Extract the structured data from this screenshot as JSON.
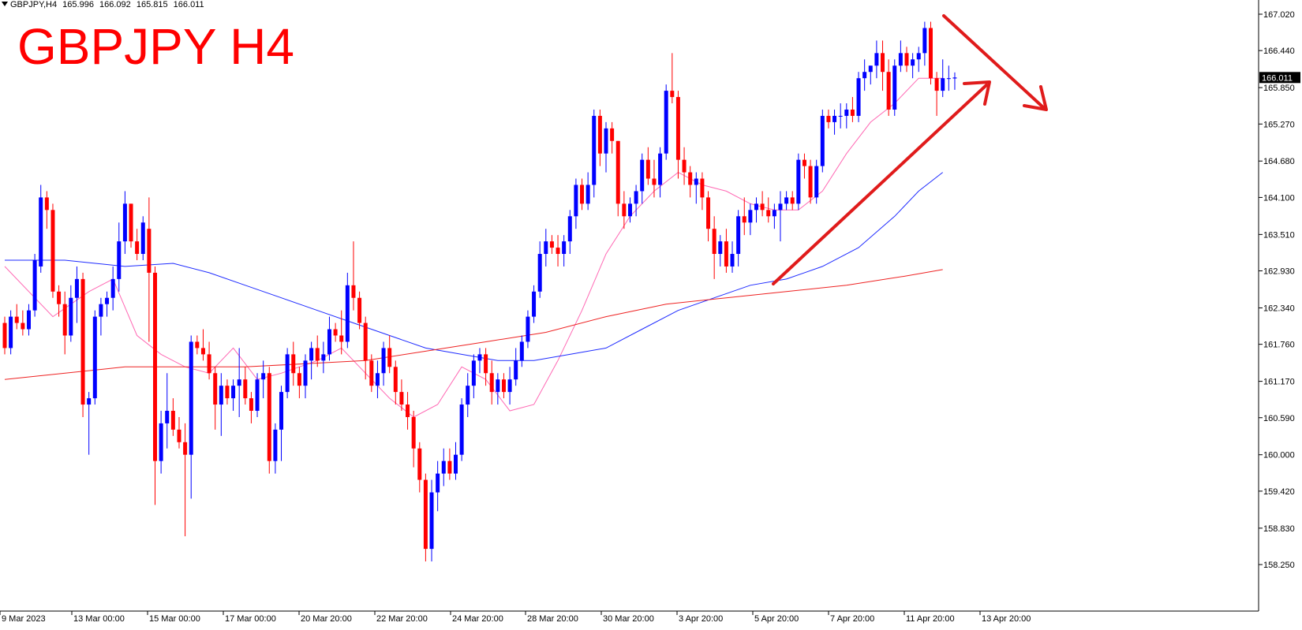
{
  "header": {
    "symbol_tf": "GBPJPY,H4",
    "open": "165.996",
    "high": "166.092",
    "low": "165.815",
    "close": "166.011"
  },
  "title": "GBPJPY H4",
  "current_price": "166.011",
  "colors": {
    "bull": "#0000ff",
    "bear": "#ff0000",
    "ma_fast": "#ff69b4",
    "ma_mid": "#1e2bff",
    "ma_slow": "#ee2222",
    "arrow": "#e01b1b",
    "price_tag_bg": "#000000",
    "price_tag_text": "#ffffff"
  },
  "icons": [
    "dropdown-triangle-icon",
    "up-trend-arrow-icon",
    "down-trend-arrow-icon"
  ],
  "chart_data": {
    "type": "candlestick",
    "title": "GBPJPY H4",
    "ylim": [
      158.0,
      167.2
    ],
    "y_ticks": [
      "167.020",
      "166.440",
      "165.850",
      "165.270",
      "164.680",
      "164.100",
      "163.510",
      "162.930",
      "162.340",
      "161.760",
      "161.170",
      "160.590",
      "160.000",
      "159.420",
      "158.830",
      "158.250"
    ],
    "x_ticks": [
      "9 Mar 2023",
      "13 Mar 00:00",
      "15 Mar 00:00",
      "17 Mar 00:00",
      "20 Mar 20:00",
      "22 Mar 20:00",
      "24 Mar 20:00",
      "28 Mar 20:00",
      "30 Mar 20:00",
      "3 Apr 20:00",
      "5 Apr 20:00",
      "7 Apr 20:00",
      "11 Apr 20:00",
      "13 Apr 20:00"
    ],
    "candles": [
      [
        162.1,
        162.2,
        161.6,
        161.7
      ],
      [
        161.7,
        162.3,
        161.6,
        162.2
      ],
      [
        162.2,
        162.4,
        162.0,
        162.1
      ],
      [
        162.1,
        162.3,
        161.9,
        162.0
      ],
      [
        162.0,
        162.4,
        161.9,
        162.3
      ],
      [
        162.3,
        163.2,
        162.2,
        163.1
      ],
      [
        163.0,
        164.3,
        162.9,
        164.1
      ],
      [
        164.1,
        164.2,
        163.6,
        163.9
      ],
      [
        163.9,
        164.0,
        162.5,
        162.6
      ],
      [
        162.6,
        162.7,
        162.2,
        162.4
      ],
      [
        162.4,
        162.6,
        161.6,
        161.9
      ],
      [
        161.9,
        162.7,
        161.8,
        162.5
      ],
      [
        162.5,
        163.0,
        162.1,
        162.8
      ],
      [
        162.8,
        162.9,
        160.6,
        160.8
      ],
      [
        160.8,
        161.0,
        160.0,
        160.9
      ],
      [
        160.9,
        162.3,
        160.8,
        162.2
      ],
      [
        162.2,
        162.5,
        161.9,
        162.4
      ],
      [
        162.4,
        162.6,
        162.2,
        162.5
      ],
      [
        162.5,
        163.0,
        162.3,
        162.8
      ],
      [
        162.8,
        163.7,
        162.6,
        163.4
      ],
      [
        163.4,
        164.2,
        163.2,
        164.0
      ],
      [
        164.0,
        164.0,
        163.3,
        163.4
      ],
      [
        163.4,
        163.6,
        163.1,
        163.2
      ],
      [
        163.2,
        163.8,
        163.1,
        163.7
      ],
      [
        163.6,
        164.1,
        161.8,
        162.9
      ],
      [
        162.9,
        163.0,
        159.2,
        159.9
      ],
      [
        159.9,
        160.7,
        159.7,
        160.5
      ],
      [
        160.5,
        161.3,
        160.1,
        160.7
      ],
      [
        160.7,
        160.9,
        160.3,
        160.4
      ],
      [
        160.4,
        160.6,
        160.1,
        160.2
      ],
      [
        160.2,
        160.5,
        158.7,
        160.0
      ],
      [
        160.0,
        161.9,
        159.3,
        161.8
      ],
      [
        161.8,
        161.9,
        161.6,
        161.7
      ],
      [
        161.7,
        162.0,
        161.5,
        161.6
      ],
      [
        161.6,
        161.8,
        161.2,
        161.3
      ],
      [
        161.3,
        161.4,
        160.4,
        160.8
      ],
      [
        160.8,
        161.3,
        160.3,
        161.1
      ],
      [
        161.1,
        161.2,
        160.8,
        160.9
      ],
      [
        160.9,
        161.2,
        160.7,
        161.1
      ],
      [
        161.1,
        161.7,
        160.6,
        161.2
      ],
      [
        161.2,
        161.4,
        160.8,
        160.9
      ],
      [
        160.9,
        161.0,
        160.5,
        160.7
      ],
      [
        160.7,
        161.3,
        160.6,
        161.2
      ],
      [
        161.2,
        161.5,
        160.9,
        161.3
      ],
      [
        161.3,
        161.4,
        159.7,
        159.9
      ],
      [
        159.9,
        160.5,
        159.7,
        160.4
      ],
      [
        160.4,
        161.1,
        159.9,
        161.0
      ],
      [
        161.0,
        161.7,
        160.9,
        161.6
      ],
      [
        161.6,
        161.8,
        161.1,
        161.3
      ],
      [
        161.3,
        161.4,
        160.9,
        161.1
      ],
      [
        161.1,
        161.6,
        160.9,
        161.5
      ],
      [
        161.5,
        161.8,
        161.2,
        161.7
      ],
      [
        161.7,
        161.9,
        161.4,
        161.5
      ],
      [
        161.5,
        161.8,
        161.3,
        161.6
      ],
      [
        161.6,
        162.2,
        161.5,
        162.0
      ],
      [
        162.0,
        162.1,
        161.8,
        161.9
      ],
      [
        161.9,
        162.3,
        161.6,
        161.8
      ],
      [
        161.8,
        162.9,
        161.7,
        162.7
      ],
      [
        162.7,
        163.4,
        162.3,
        162.5
      ],
      [
        162.5,
        162.6,
        162.0,
        162.1
      ],
      [
        162.1,
        162.2,
        161.2,
        161.5
      ],
      [
        161.5,
        161.6,
        161.0,
        161.1
      ],
      [
        161.1,
        161.5,
        160.9,
        161.3
      ],
      [
        161.3,
        161.8,
        161.1,
        161.7
      ],
      [
        161.7,
        161.9,
        161.3,
        161.4
      ],
      [
        161.4,
        161.5,
        160.8,
        161.0
      ],
      [
        161.0,
        161.2,
        160.7,
        160.8
      ],
      [
        160.8,
        161.0,
        160.4,
        160.6
      ],
      [
        160.6,
        160.7,
        159.8,
        160.1
      ],
      [
        160.1,
        160.2,
        159.4,
        159.6
      ],
      [
        159.6,
        159.7,
        158.3,
        158.5
      ],
      [
        158.5,
        159.6,
        158.3,
        159.4
      ],
      [
        159.4,
        159.9,
        159.1,
        159.7
      ],
      [
        159.7,
        160.1,
        159.5,
        159.9
      ],
      [
        159.9,
        160.1,
        159.6,
        159.7
      ],
      [
        159.7,
        160.2,
        159.6,
        160.0
      ],
      [
        160.0,
        160.9,
        159.9,
        160.8
      ],
      [
        160.8,
        161.3,
        160.6,
        161.1
      ],
      [
        161.1,
        161.6,
        160.9,
        161.5
      ],
      [
        161.5,
        161.7,
        161.3,
        161.6
      ],
      [
        161.6,
        161.7,
        161.1,
        161.3
      ],
      [
        161.3,
        161.5,
        160.8,
        161.0
      ],
      [
        161.0,
        161.3,
        160.8,
        161.2
      ],
      [
        161.2,
        161.3,
        160.9,
        161.0
      ],
      [
        161.0,
        161.4,
        160.8,
        161.2
      ],
      [
        161.2,
        161.7,
        161.1,
        161.5
      ],
      [
        161.5,
        161.9,
        161.4,
        161.8
      ],
      [
        161.8,
        162.3,
        161.7,
        162.2
      ],
      [
        162.2,
        162.7,
        162.1,
        162.6
      ],
      [
        162.6,
        163.4,
        162.5,
        163.2
      ],
      [
        163.2,
        163.6,
        163.0,
        163.4
      ],
      [
        163.4,
        163.5,
        163.2,
        163.3
      ],
      [
        163.3,
        163.5,
        163.0,
        163.2
      ],
      [
        163.2,
        163.5,
        163.0,
        163.4
      ],
      [
        163.4,
        163.9,
        163.2,
        163.8
      ],
      [
        163.8,
        164.4,
        163.6,
        164.3
      ],
      [
        164.3,
        164.4,
        163.9,
        164.0
      ],
      [
        164.0,
        164.5,
        163.9,
        164.3
      ],
      [
        164.3,
        165.5,
        164.1,
        165.4
      ],
      [
        165.4,
        165.5,
        164.6,
        164.8
      ],
      [
        164.8,
        165.3,
        164.5,
        165.2
      ],
      [
        165.2,
        165.3,
        164.8,
        165.0
      ],
      [
        165.0,
        165.0,
        163.8,
        164.0
      ],
      [
        164.0,
        164.2,
        163.6,
        163.8
      ],
      [
        163.8,
        164.1,
        163.7,
        164.0
      ],
      [
        164.0,
        164.3,
        163.8,
        164.2
      ],
      [
        164.2,
        164.8,
        164.0,
        164.7
      ],
      [
        164.7,
        164.9,
        164.3,
        164.4
      ],
      [
        164.4,
        164.7,
        164.1,
        164.3
      ],
      [
        164.3,
        164.9,
        164.1,
        164.8
      ],
      [
        164.8,
        165.9,
        164.7,
        165.8
      ],
      [
        165.8,
        166.4,
        165.6,
        165.7
      ],
      [
        165.7,
        165.8,
        164.4,
        164.7
      ],
      [
        164.7,
        164.9,
        164.3,
        164.5
      ],
      [
        164.5,
        164.6,
        164.1,
        164.3
      ],
      [
        164.3,
        164.5,
        164.0,
        164.4
      ],
      [
        164.4,
        164.5,
        163.9,
        164.1
      ],
      [
        164.1,
        164.2,
        163.4,
        163.6
      ],
      [
        163.6,
        163.8,
        162.8,
        163.2
      ],
      [
        163.2,
        163.5,
        163.0,
        163.4
      ],
      [
        163.4,
        163.6,
        162.9,
        163.0
      ],
      [
        163.0,
        163.4,
        162.9,
        163.2
      ],
      [
        163.2,
        163.9,
        163.0,
        163.8
      ],
      [
        163.8,
        164.1,
        163.5,
        163.7
      ],
      [
        163.7,
        164.0,
        163.5,
        163.9
      ],
      [
        163.9,
        164.1,
        163.7,
        164.0
      ],
      [
        164.0,
        164.2,
        163.8,
        163.9
      ],
      [
        163.9,
        164.1,
        163.7,
        163.8
      ],
      [
        163.8,
        164.0,
        163.6,
        163.9
      ],
      [
        163.9,
        164.2,
        163.4,
        164.0
      ],
      [
        164.0,
        164.2,
        163.9,
        164.1
      ],
      [
        164.1,
        164.2,
        163.9,
        164.0
      ],
      [
        164.0,
        164.8,
        163.9,
        164.7
      ],
      [
        164.7,
        164.8,
        164.4,
        164.6
      ],
      [
        164.6,
        164.7,
        164.0,
        164.1
      ],
      [
        164.1,
        164.7,
        164.0,
        164.6
      ],
      [
        164.6,
        165.5,
        164.5,
        165.4
      ],
      [
        165.4,
        165.5,
        165.2,
        165.3
      ],
      [
        165.3,
        165.5,
        165.1,
        165.4
      ],
      [
        165.4,
        165.6,
        165.2,
        165.4
      ],
      [
        165.4,
        165.6,
        165.2,
        165.5
      ],
      [
        165.5,
        165.7,
        165.3,
        165.4
      ],
      [
        165.4,
        166.1,
        165.3,
        166.0
      ],
      [
        166.0,
        166.3,
        165.8,
        166.1
      ],
      [
        166.1,
        166.2,
        165.9,
        166.2
      ],
      [
        166.2,
        166.6,
        166.0,
        166.4
      ],
      [
        166.4,
        166.6,
        165.8,
        166.1
      ],
      [
        166.1,
        166.3,
        165.4,
        165.5
      ],
      [
        165.5,
        166.3,
        165.4,
        166.2
      ],
      [
        166.2,
        166.6,
        166.1,
        166.4
      ],
      [
        166.4,
        166.5,
        166.1,
        166.2
      ],
      [
        166.2,
        166.4,
        166.0,
        166.3
      ],
      [
        166.3,
        166.5,
        166.1,
        166.4
      ],
      [
        166.4,
        166.9,
        166.2,
        166.8
      ],
      [
        166.8,
        166.9,
        165.9,
        166.0
      ],
      [
        166.0,
        166.1,
        165.4,
        165.8
      ],
      [
        165.8,
        166.3,
        165.7,
        166.0
      ],
      [
        166.0,
        166.2,
        165.8,
        166.0
      ],
      [
        165.996,
        166.092,
        165.815,
        166.011
      ]
    ],
    "indicators": {
      "ma_fast_pts": [
        [
          0,
          163.0
        ],
        [
          8,
          162.2
        ],
        [
          14,
          162.6
        ],
        [
          18,
          162.8
        ],
        [
          22,
          161.9
        ],
        [
          26,
          161.6
        ],
        [
          30,
          161.4
        ],
        [
          34,
          161.3
        ],
        [
          38,
          161.7
        ],
        [
          42,
          161.2
        ],
        [
          46,
          161.3
        ],
        [
          52,
          161.5
        ],
        [
          56,
          161.7
        ],
        [
          60,
          161.3
        ],
        [
          64,
          160.9
        ],
        [
          68,
          160.6
        ],
        [
          72,
          160.8
        ],
        [
          76,
          161.4
        ],
        [
          80,
          161.2
        ],
        [
          84,
          160.7
        ],
        [
          88,
          160.8
        ],
        [
          92,
          161.5
        ],
        [
          96,
          162.3
        ],
        [
          100,
          163.2
        ],
        [
          104,
          163.8
        ],
        [
          108,
          164.2
        ],
        [
          112,
          164.5
        ],
        [
          116,
          164.3
        ],
        [
          120,
          164.2
        ],
        [
          124,
          164.0
        ],
        [
          128,
          163.9
        ],
        [
          132,
          163.9
        ],
        [
          136,
          164.2
        ],
        [
          140,
          164.8
        ],
        [
          144,
          165.3
        ],
        [
          148,
          165.6
        ],
        [
          152,
          166.0
        ],
        [
          156,
          166.0
        ]
      ],
      "ma_mid_pts": [
        [
          0,
          163.1
        ],
        [
          10,
          163.1
        ],
        [
          20,
          163.0
        ],
        [
          28,
          163.05
        ],
        [
          34,
          162.9
        ],
        [
          40,
          162.7
        ],
        [
          46,
          162.5
        ],
        [
          52,
          162.3
        ],
        [
          58,
          162.1
        ],
        [
          64,
          161.9
        ],
        [
          70,
          161.7
        ],
        [
          76,
          161.6
        ],
        [
          82,
          161.5
        ],
        [
          88,
          161.5
        ],
        [
          94,
          161.6
        ],
        [
          100,
          161.7
        ],
        [
          106,
          162.0
        ],
        [
          112,
          162.3
        ],
        [
          118,
          162.5
        ],
        [
          124,
          162.7
        ],
        [
          130,
          162.8
        ],
        [
          136,
          163.0
        ],
        [
          142,
          163.3
        ],
        [
          148,
          163.8
        ],
        [
          152,
          164.2
        ],
        [
          156,
          164.5
        ]
      ],
      "ma_slow_pts": [
        [
          0,
          161.2
        ],
        [
          20,
          161.4
        ],
        [
          40,
          161.4
        ],
        [
          60,
          161.5
        ],
        [
          70,
          161.65
        ],
        [
          80,
          161.8
        ],
        [
          90,
          161.95
        ],
        [
          100,
          162.2
        ],
        [
          110,
          162.4
        ],
        [
          120,
          162.5
        ],
        [
          130,
          162.6
        ],
        [
          140,
          162.7
        ],
        [
          150,
          162.85
        ],
        [
          156,
          162.95
        ]
      ]
    },
    "grid": false,
    "legend": "none"
  }
}
